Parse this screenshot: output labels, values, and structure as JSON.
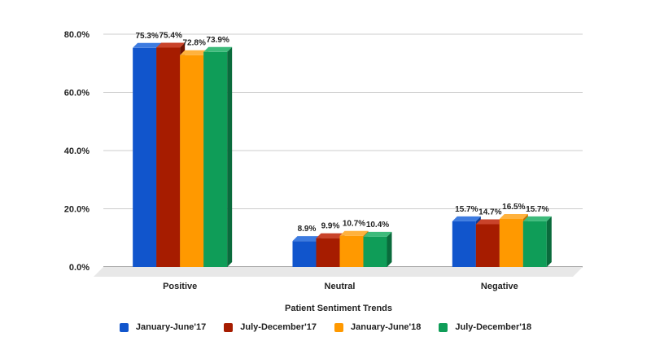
{
  "chart_data": {
    "type": "bar",
    "categories": [
      "Positive",
      "Neutral",
      "Negative"
    ],
    "series": [
      {
        "name": "January-June'17",
        "values": [
          75.3,
          8.9,
          15.7
        ],
        "labels": [
          "75.3%",
          "8.9%",
          "15.7%"
        ],
        "color": "#1155cc",
        "side_color": "#0b3d99",
        "top_color": "#3d7be0"
      },
      {
        "name": "July-December'17",
        "values": [
          75.4,
          9.9,
          14.7
        ],
        "labels": [
          "75.4%",
          "9.9%",
          "14.7%"
        ],
        "color": "#a61c00",
        "side_color": "#6e1200",
        "top_color": "#c9432a"
      },
      {
        "name": "January-June'18",
        "values": [
          72.8,
          10.7,
          16.5
        ],
        "labels": [
          "72.8%",
          "10.7%",
          "16.5%"
        ],
        "color": "#ff9900",
        "side_color": "#c26f00",
        "top_color": "#ffb23d"
      },
      {
        "name": "July-December'18",
        "values": [
          73.9,
          10.4,
          15.7
        ],
        "labels": [
          "73.9%",
          "10.4%",
          "15.7%"
        ],
        "color": "#0f9d58",
        "side_color": "#0a6b3c",
        "top_color": "#3dbb7b"
      }
    ],
    "title": "",
    "xlabel": "Patient Sentiment Trends",
    "ylabel": "",
    "ylim": [
      0,
      80
    ],
    "yticks": [
      0,
      20,
      40,
      60,
      80
    ],
    "ytick_labels": [
      "0.0%",
      "20.0%",
      "40.0%",
      "60.0%",
      "80.0%"
    ],
    "grid": true,
    "legend_position": "bottom",
    "style": "3d"
  }
}
